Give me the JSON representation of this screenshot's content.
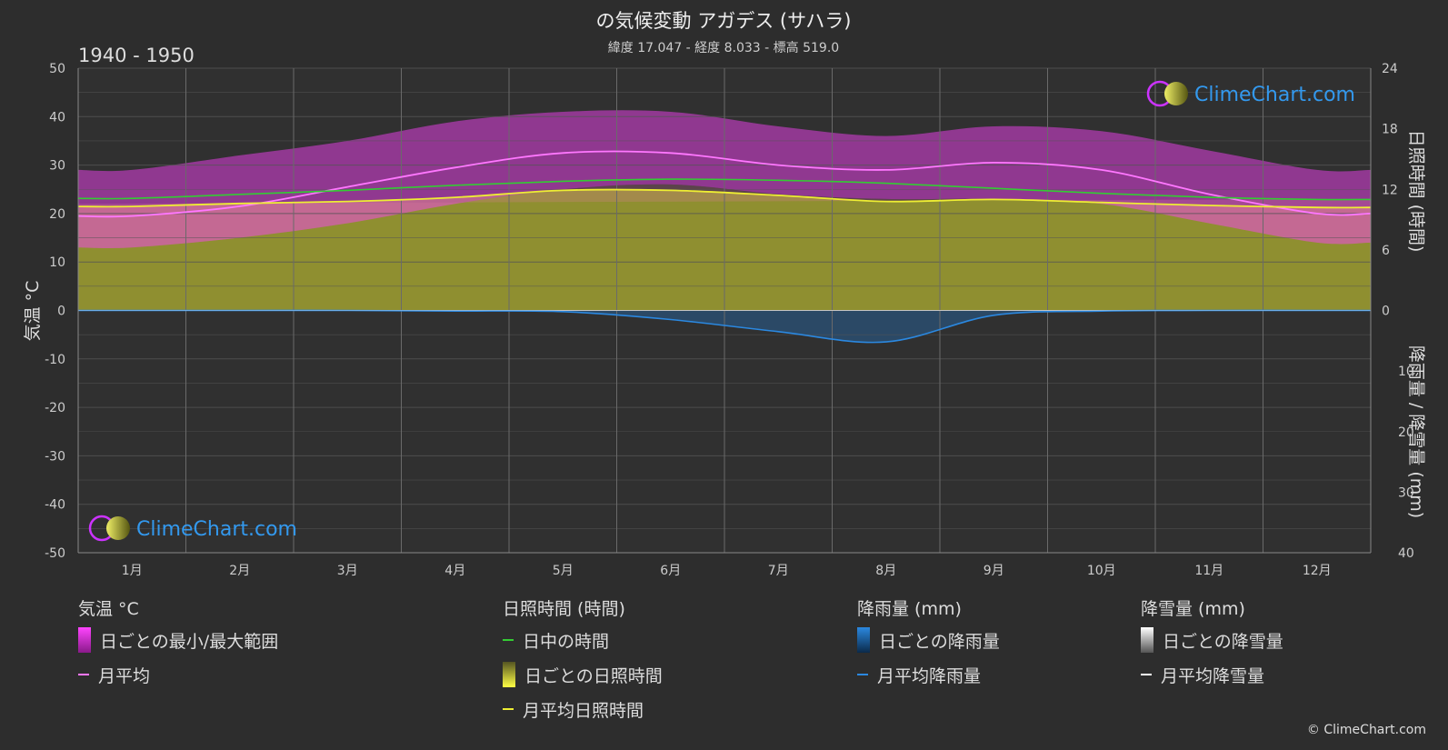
{
  "title": "の気候変動 アガデス (サハラ)",
  "subtitle": "緯度 17.047 - 経度 8.033 - 標高 519.0",
  "period": "1940 - 1950",
  "watermark": "ClimeChart.com",
  "copyright": "© ClimeChart.com",
  "colors": {
    "background": "#2d2d2d",
    "grid": "#555555",
    "temp_range": "#e040e0",
    "temp_low_range": "#e07a9c",
    "temp_avg": "#ff77ff",
    "daylight": "#33cc33",
    "sunshine_fill": "#a0a030",
    "sunshine_avg": "#eeee33",
    "rain": "#2277cc",
    "rain_avg": "#2b88e0",
    "snow_avg": "#ffffff"
  },
  "legend": {
    "temp": {
      "header": "気温 °C",
      "range": "日ごとの最小/最大範囲",
      "avg": "月平均"
    },
    "sun": {
      "header": "日照時間 (時間)",
      "daylight": "日中の時間",
      "daily": "日ごとの日照時間",
      "avg": "月平均日照時間"
    },
    "rain": {
      "header": "降雨量 (mm)",
      "daily": "日ごとの降雨量",
      "avg": "月平均降雨量"
    },
    "snow": {
      "header": "降雪量 (mm)",
      "daily": "日ごとの降雪量",
      "avg": "月平均降雪量"
    }
  },
  "chart_data": {
    "type": "area",
    "x_categories": [
      "1月",
      "2月",
      "3月",
      "4月",
      "5月",
      "6月",
      "7月",
      "8月",
      "9月",
      "10月",
      "11月",
      "12月"
    ],
    "left_axis": {
      "label": "気温 °C",
      "range": [
        -50,
        50
      ],
      "ticks": [
        50,
        40,
        30,
        20,
        10,
        0,
        -10,
        -20,
        -30,
        -40,
        -50
      ]
    },
    "right_axis_top": {
      "label": "日照時間 (時間)",
      "range": [
        0,
        24
      ],
      "ticks": [
        24,
        18,
        12,
        6,
        0
      ]
    },
    "right_axis_bottom": {
      "label": "降雨量 / 降雪量 (mm)",
      "range": [
        0,
        40
      ],
      "ticks": [
        0,
        10,
        20,
        30,
        40
      ]
    },
    "series": [
      {
        "name": "日ごとの最小/最大範囲",
        "unit": "°C",
        "min": [
          13,
          15,
          18,
          22,
          25,
          26,
          24,
          23,
          23,
          22,
          18,
          14
        ],
        "max": [
          29,
          32,
          35,
          39,
          41,
          41,
          38,
          36,
          38,
          37,
          33,
          29
        ]
      },
      {
        "name": "月平均",
        "unit": "°C",
        "values": [
          19.5,
          21.5,
          25.5,
          29.5,
          32.5,
          32.5,
          30,
          29,
          30.5,
          29,
          24,
          20
        ]
      },
      {
        "name": "日中の時間",
        "unit": "時間",
        "values": [
          11.1,
          11.5,
          11.9,
          12.4,
          12.8,
          13.0,
          12.9,
          12.6,
          12.1,
          11.6,
          11.2,
          11.0
        ]
      },
      {
        "name": "月平均日照時間",
        "unit": "時間",
        "values": [
          10.3,
          10.6,
          10.8,
          11.2,
          11.9,
          11.9,
          11.4,
          10.8,
          11.0,
          10.7,
          10.4,
          10.2
        ]
      },
      {
        "name": "月平均降雨量",
        "unit": "mm",
        "values": [
          0,
          0,
          0,
          0.1,
          0.2,
          1.5,
          3.5,
          5.2,
          0.8,
          0.1,
          0,
          0
        ]
      },
      {
        "name": "月平均降雪量",
        "unit": "mm",
        "values": [
          0,
          0,
          0,
          0,
          0,
          0,
          0,
          0,
          0,
          0,
          0,
          0
        ]
      }
    ]
  }
}
